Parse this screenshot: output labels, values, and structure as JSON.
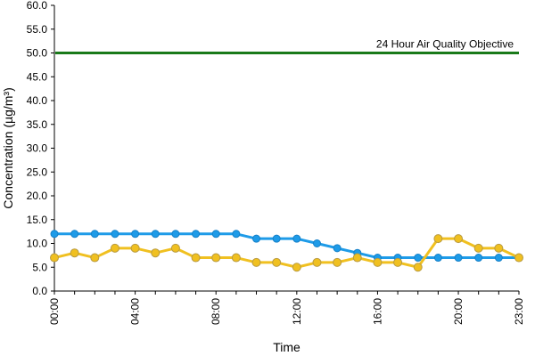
{
  "chart_data": {
    "type": "line",
    "title": "",
    "xlabel": "Time",
    "ylabel": "Concentration (µg/m³)",
    "ylim": [
      0,
      60
    ],
    "yticks": [
      "0.0",
      "5.0",
      "10.0",
      "15.0",
      "20.0",
      "25.0",
      "30.0",
      "35.0",
      "40.0",
      "45.0",
      "50.0",
      "55.0",
      "60.0"
    ],
    "x": [
      "00:00",
      "01:00",
      "02:00",
      "03:00",
      "04:00",
      "05:00",
      "06:00",
      "07:00",
      "08:00",
      "09:00",
      "10:00",
      "11:00",
      "12:00",
      "13:00",
      "14:00",
      "15:00",
      "16:00",
      "17:00",
      "18:00",
      "19:00",
      "20:00",
      "21:00",
      "22:00",
      "23:00"
    ],
    "xtick_labels": [
      "00:00",
      "04:00",
      "08:00",
      "12:00",
      "16:00",
      "20:00",
      "23:00"
    ],
    "grid": false,
    "reference_line": {
      "label": "24 Hour Air Quality Objective",
      "value": 50,
      "color": "#1a7a1a"
    },
    "series": [
      {
        "color": "#1e9be8",
        "values": [
          12,
          12,
          12,
          12,
          12,
          12,
          12,
          12,
          12,
          12,
          11,
          11,
          11,
          10,
          9,
          8,
          7,
          7,
          7,
          7,
          7,
          7,
          7,
          7
        ]
      },
      {
        "color": "#f0c020",
        "values": [
          7,
          8,
          7,
          9,
          9,
          8,
          9,
          7,
          7,
          7,
          6,
          6,
          5,
          6,
          6,
          7,
          6,
          6,
          5,
          11,
          11,
          9,
          9,
          7
        ]
      }
    ]
  }
}
